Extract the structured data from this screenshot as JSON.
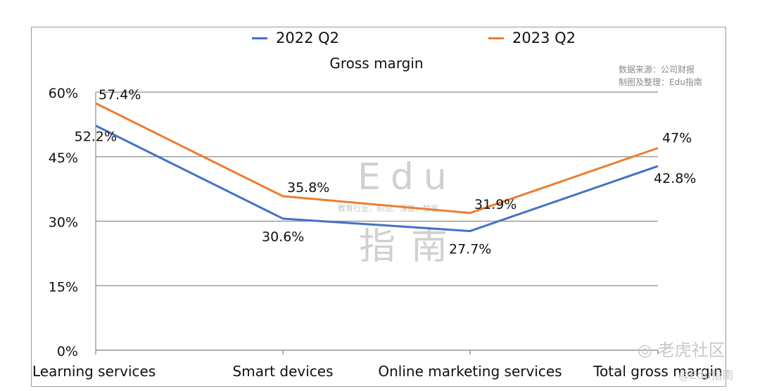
{
  "chart_data": {
    "type": "line",
    "title": "Gross margin",
    "categories": [
      "Learning services",
      "Smart devices",
      "Online marketing services",
      "Total gross margin"
    ],
    "series": [
      {
        "name": "2022 Q2",
        "color": "#4472c4",
        "values": [
          52.2,
          30.6,
          27.7,
          42.8
        ],
        "labels": [
          "52.2%",
          "30.6%",
          "27.7%",
          "42.8%"
        ]
      },
      {
        "name": "2023 Q2",
        "color": "#ed7d31",
        "values": [
          57.4,
          35.8,
          31.9,
          47
        ],
        "labels": [
          "57.4%",
          "35.8%",
          "31.9%",
          "47%"
        ]
      }
    ],
    "y_ticks": [
      0,
      15,
      30,
      45,
      60
    ],
    "y_tick_labels": [
      "0%",
      "15%",
      "30%",
      "45%",
      "60%"
    ],
    "ylim": [
      0,
      60
    ],
    "grid": true,
    "legend_position": "top-center"
  },
  "source_note": [
    "数据来源：公司财报",
    "制图及整理：Edu指南"
  ],
  "watermark": {
    "latin": "Edu",
    "tagline": "教育行业，前沿、深度、独家",
    "chinese": "指南",
    "community": "老虎社区",
    "handle": "@Edu指南"
  }
}
